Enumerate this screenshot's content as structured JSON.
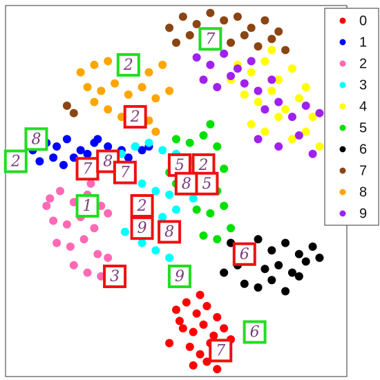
{
  "chart_data": {
    "type": "scatter",
    "xlim": [
      0,
      100
    ],
    "ylim": [
      0,
      100
    ],
    "legend": "upper right",
    "series": [
      {
        "name": "0",
        "color": "#ff0000",
        "x": [
          50,
          53,
          56,
          59,
          62,
          52,
          55,
          58,
          61,
          64,
          48,
          54,
          57,
          60,
          66,
          55,
          59,
          62,
          51,
          57
        ],
        "y": [
          18,
          20,
          17,
          19,
          16,
          13,
          12,
          14,
          11,
          13,
          9,
          8,
          6,
          9,
          10,
          3,
          4,
          2,
          15,
          22
        ]
      },
      {
        "name": "1",
        "color": "#0000ff",
        "x": [
          8,
          12,
          15,
          18,
          22,
          26,
          30,
          34,
          38,
          42,
          10,
          14,
          20,
          24,
          28,
          32,
          36,
          40,
          17,
          27
        ],
        "y": [
          61,
          63,
          62,
          64,
          61,
          63,
          62,
          61,
          62,
          62,
          58,
          59,
          59,
          60,
          58,
          60,
          59,
          61,
          57,
          64
        ]
      },
      {
        "name": "2",
        "color": "#ff69b4",
        "x": [
          13,
          16,
          20,
          24,
          28,
          30,
          14,
          18,
          22,
          26,
          15,
          19,
          23,
          27,
          20,
          24,
          28,
          12,
          25,
          30
        ],
        "y": [
          48,
          50,
          47,
          49,
          46,
          44,
          42,
          41,
          43,
          40,
          36,
          35,
          37,
          33,
          30,
          28,
          27,
          46,
          52,
          32
        ]
      },
      {
        "name": "3",
        "color": "#00ffff",
        "x": [
          34,
          38,
          42,
          46,
          50,
          54,
          36,
          40,
          44,
          48,
          52,
          38,
          42,
          46,
          50,
          40,
          44,
          48,
          35,
          55
        ],
        "y": [
          60,
          62,
          63,
          61,
          60,
          58,
          54,
          52,
          50,
          49,
          53,
          44,
          42,
          43,
          45,
          36,
          34,
          32,
          39,
          48
        ]
      },
      {
        "name": "4",
        "color": "#ffff00",
        "x": [
          68,
          72,
          76,
          80,
          84,
          88,
          70,
          74,
          78,
          82,
          86,
          90,
          72,
          76,
          80,
          84,
          88,
          92,
          66,
          78
        ],
        "y": [
          84,
          82,
          85,
          80,
          83,
          78,
          76,
          74,
          77,
          72,
          75,
          70,
          68,
          66,
          70,
          64,
          66,
          62,
          80,
          88
        ]
      },
      {
        "name": "5",
        "color": "#00e000",
        "x": [
          50,
          54,
          58,
          62,
          52,
          56,
          60,
          64,
          50,
          54,
          58,
          62,
          56,
          60,
          64,
          58,
          62,
          66,
          48,
          60
        ],
        "y": [
          64,
          63,
          65,
          62,
          58,
          57,
          59,
          56,
          52,
          51,
          53,
          50,
          45,
          44,
          46,
          38,
          37,
          40,
          55,
          68
        ]
      },
      {
        "name": "6",
        "color": "#000000",
        "x": [
          66,
          70,
          74,
          78,
          82,
          86,
          90,
          68,
          72,
          76,
          80,
          84,
          88,
          92,
          70,
          74,
          78,
          82,
          86,
          64
        ],
        "y": [
          36,
          35,
          37,
          34,
          36,
          33,
          35,
          30,
          31,
          29,
          30,
          28,
          31,
          32,
          25,
          24,
          26,
          23,
          27,
          28
        ]
      },
      {
        "name": "7",
        "color": "#8b4513",
        "x": [
          48,
          52,
          56,
          60,
          64,
          68,
          72,
          76,
          80,
          50,
          54,
          58,
          62,
          66,
          70,
          74,
          78,
          82,
          18,
          20
        ],
        "y": [
          94,
          97,
          95,
          98,
          96,
          97,
          94,
          96,
          93,
          90,
          92,
          89,
          91,
          90,
          92,
          89,
          91,
          88,
          73,
          71
        ]
      },
      {
        "name": "8",
        "color": "#ffa500",
        "x": [
          22,
          26,
          30,
          34,
          38,
          42,
          46,
          24,
          28,
          32,
          36,
          40,
          44,
          48,
          30,
          34,
          38,
          42,
          26,
          44
        ],
        "y": [
          82,
          84,
          85,
          83,
          86,
          82,
          84,
          78,
          77,
          79,
          76,
          78,
          75,
          77,
          72,
          70,
          71,
          69,
          74,
          66
        ]
      },
      {
        "name": "9",
        "color": "#a020f0",
        "x": [
          56,
          60,
          64,
          68,
          72,
          58,
          62,
          66,
          70,
          74,
          78,
          76,
          80,
          84,
          88,
          92,
          74,
          80,
          86,
          90
        ],
        "y": [
          86,
          84,
          87,
          83,
          85,
          80,
          78,
          81,
          79,
          77,
          80,
          72,
          74,
          70,
          73,
          71,
          64,
          62,
          65,
          60
        ]
      }
    ],
    "thumbnails": [
      {
        "x": 60,
        "y": 91,
        "digit": "7",
        "border": "#22dd22"
      },
      {
        "x": 36,
        "y": 84,
        "digit": "2",
        "border": "#22dd22"
      },
      {
        "x": 38,
        "y": 70,
        "digit": "2",
        "border": "#ee1111"
      },
      {
        "x": 9,
        "y": 64,
        "digit": "8",
        "border": "#22dd22"
      },
      {
        "x": 3,
        "y": 58,
        "digit": "2",
        "border": "#22dd22"
      },
      {
        "x": 24,
        "y": 56,
        "digit": "7",
        "border": "#ee1111"
      },
      {
        "x": 30,
        "y": 58,
        "digit": "8",
        "border": "#ee1111"
      },
      {
        "x": 35,
        "y": 55,
        "digit": "7",
        "border": "#ee1111"
      },
      {
        "x": 24,
        "y": 46,
        "digit": "1",
        "border": "#22dd22"
      },
      {
        "x": 51,
        "y": 57,
        "digit": "5",
        "border": "#ee1111"
      },
      {
        "x": 58,
        "y": 57,
        "digit": "2",
        "border": "#ee1111"
      },
      {
        "x": 53,
        "y": 52,
        "digit": "8",
        "border": "#ee1111"
      },
      {
        "x": 59,
        "y": 52,
        "digit": "5",
        "border": "#ee1111"
      },
      {
        "x": 40,
        "y": 46,
        "digit": "2",
        "border": "#ee1111"
      },
      {
        "x": 40,
        "y": 40,
        "digit": "9",
        "border": "#ee1111"
      },
      {
        "x": 48,
        "y": 39,
        "digit": "8",
        "border": "#ee1111"
      },
      {
        "x": 32,
        "y": 27,
        "digit": "3",
        "border": "#ee1111"
      },
      {
        "x": 51,
        "y": 27,
        "digit": "9",
        "border": "#22dd22"
      },
      {
        "x": 70,
        "y": 33,
        "digit": "6",
        "border": "#ee1111"
      },
      {
        "x": 73,
        "y": 12,
        "digit": "6",
        "border": "#22dd22"
      },
      {
        "x": 63,
        "y": 7,
        "digit": "7",
        "border": "#ee1111"
      }
    ]
  }
}
